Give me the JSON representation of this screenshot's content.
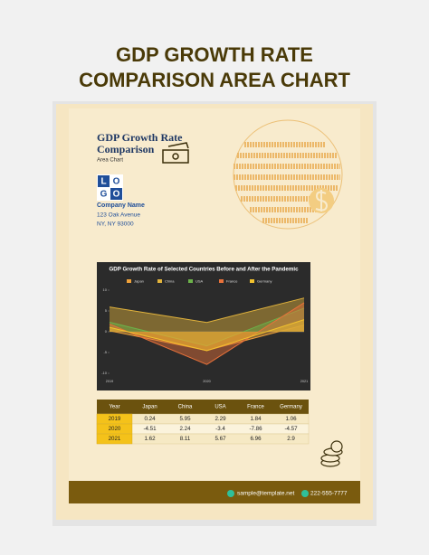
{
  "header": {
    "title": [
      "GDP GROWTH RATE",
      "COMPARISON AREA CHART"
    ]
  },
  "document": {
    "title": [
      "GDP Growth Rate",
      "Comparison"
    ],
    "subtitle": "Area Chart",
    "logo": [
      "L",
      "O",
      "G",
      "O"
    ],
    "company": "Company Name",
    "address": [
      "123 Oak Avenue",
      "NY, NY 93000"
    ],
    "footer": {
      "email": "sample@template.net",
      "phone": "222-555-7777"
    }
  },
  "chart_data": {
    "type": "area",
    "title": "GDP Growth Rate of Selected Countries Before and After the Pandemic",
    "categories": [
      "2019",
      "2020",
      "2021"
    ],
    "series": [
      {
        "name": "Japan",
        "color": "#f0a23a",
        "values": [
          0.24,
          -4.51,
          1.62
        ]
      },
      {
        "name": "China",
        "color": "#e3b43c",
        "values": [
          5.95,
          2.24,
          8.11
        ]
      },
      {
        "name": "USA",
        "color": "#6cb24a",
        "values": [
          2.29,
          -3.4,
          5.67
        ]
      },
      {
        "name": "France",
        "color": "#e8713a",
        "values": [
          1.84,
          -7.86,
          6.96
        ]
      },
      {
        "name": "Germany",
        "color": "#f2c22e",
        "values": [
          1.06,
          -4.57,
          2.9
        ]
      }
    ],
    "ylim": [
      -10,
      10
    ],
    "yticks": [
      -10,
      -5,
      0,
      5,
      10
    ],
    "legend": "top",
    "grid": false
  },
  "table": {
    "corner": "Year"
  }
}
